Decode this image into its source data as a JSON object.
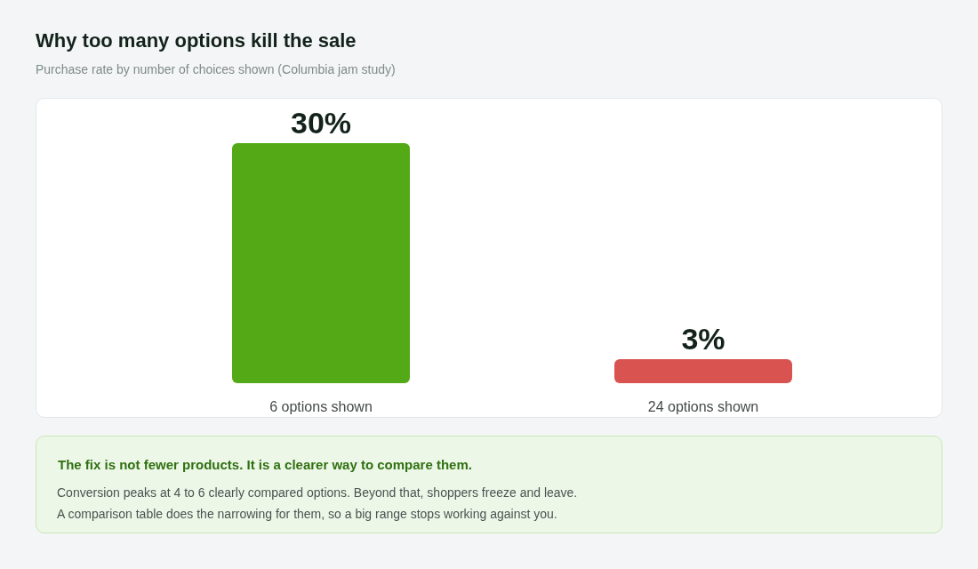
{
  "chart_data": {
    "type": "bar",
    "title": "Why too many options kill the sale",
    "subtitle": "Purchase rate by number of choices shown (Columbia jam study)",
    "categories": [
      "6 options shown",
      "24 options shown"
    ],
    "values": [
      30,
      3
    ],
    "colors": [
      "#53aa16",
      "#d95451"
    ],
    "value_labels": [
      "30%",
      "3%"
    ],
    "annotations": [
      "The fix is not fewer products. It is a clearer way to compare them.",
      "Conversion peaks at 4 to 6 clearly compared options. Beyond that, shoppers freeze and leave.",
      "A comparison table does the narrowing for them, so a big range stops working against you."
    ]
  }
}
